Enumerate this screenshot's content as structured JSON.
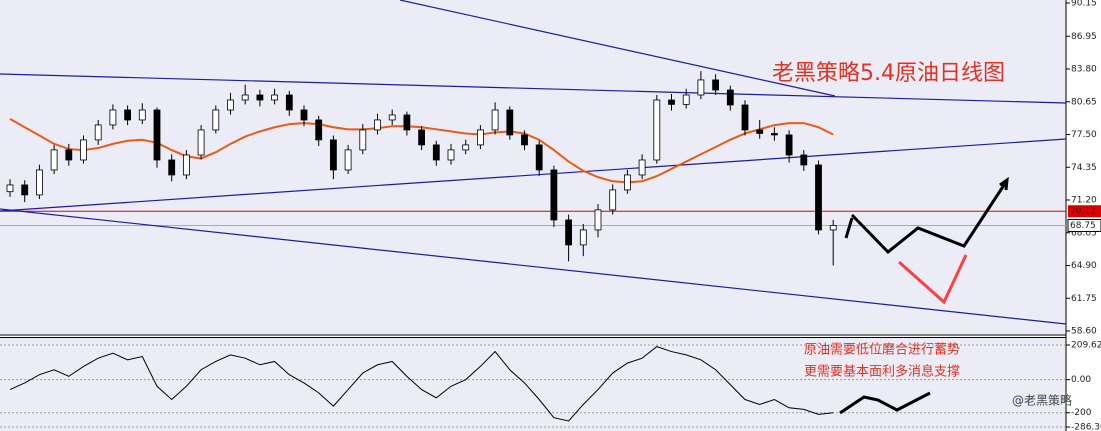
{
  "chart_data": {
    "type": "candlestick",
    "title": "老黑策略5.4原油日线图",
    "annotation": [
      "原油需要低位磨合进行蓄势",
      "更需要基本面利多消息支撑"
    ],
    "watermark": "@老黑策略",
    "up_color": "#ffffff",
    "down_color": "#000000",
    "open": [
      72.0,
      72.65,
      71.69,
      74.09,
      76.02,
      75.05,
      76.98,
      78.42,
      79.86,
      78.9,
      79.86,
      75.05,
      73.61,
      75.53,
      77.94,
      79.86,
      80.82,
      81.3,
      80.82,
      81.3,
      79.86,
      78.9,
      76.98,
      74.09,
      76.02,
      77.94,
      78.9,
      79.38,
      77.94,
      76.5,
      75.05,
      76.02,
      76.5,
      77.94,
      79.86,
      77.46,
      76.5,
      74.09,
      69.28,
      66.88,
      68.32,
      70.25,
      72.17,
      73.61,
      75.05,
      80.82,
      80.4,
      81.3,
      82.75,
      81.78,
      80.34,
      77.94,
      77.6,
      77.46,
      75.53,
      74.57,
      68.32
    ],
    "high": [
      73.2,
      73.1,
      74.6,
      76.5,
      76.6,
      77.4,
      78.9,
      80.4,
      80.3,
      80.5,
      80.1,
      75.6,
      76.0,
      78.4,
      80.3,
      81.5,
      82.3,
      81.8,
      81.9,
      81.7,
      80.3,
      79.3,
      77.4,
      76.5,
      78.5,
      79.5,
      79.9,
      79.7,
      78.3,
      76.9,
      76.6,
      77.0,
      78.4,
      80.6,
      80.2,
      77.9,
      76.9,
      74.5,
      69.8,
      68.9,
      70.8,
      72.7,
      74.1,
      75.6,
      81.3,
      81.4,
      81.9,
      83.6,
      83.3,
      82.2,
      80.8,
      78.9,
      78.2,
      77.9,
      76.0,
      75.0,
      69.3
    ],
    "low": [
      71.5,
      71.0,
      71.3,
      73.7,
      74.5,
      74.7,
      76.5,
      78.0,
      78.4,
      78.5,
      74.3,
      73.0,
      73.2,
      75.1,
      77.6,
      79.4,
      80.4,
      80.2,
      80.4,
      79.3,
      78.3,
      76.4,
      73.2,
      73.7,
      75.6,
      77.5,
      78.4,
      77.4,
      76.0,
      74.5,
      74.6,
      75.6,
      76.1,
      77.5,
      77.0,
      76.0,
      73.5,
      68.6,
      65.3,
      65.8,
      67.6,
      69.8,
      71.8,
      73.2,
      74.7,
      79.8,
      80.0,
      80.9,
      81.3,
      79.8,
      77.4,
      77.1,
      76.9,
      74.8,
      74.0,
      67.9,
      64.9
    ],
    "close": [
      72.65,
      71.69,
      74.09,
      76.02,
      75.05,
      76.98,
      78.42,
      79.86,
      78.9,
      79.86,
      75.05,
      73.61,
      75.53,
      77.94,
      79.86,
      80.82,
      81.3,
      80.82,
      81.3,
      79.86,
      78.9,
      76.98,
      74.09,
      76.02,
      77.94,
      78.9,
      79.38,
      77.94,
      76.5,
      75.05,
      76.02,
      76.5,
      77.94,
      79.86,
      77.46,
      76.5,
      74.09,
      69.28,
      66.88,
      68.32,
      70.25,
      72.17,
      73.61,
      75.05,
      80.82,
      80.4,
      81.3,
      82.75,
      81.78,
      80.34,
      77.94,
      77.6,
      77.46,
      75.53,
      74.57,
      68.32,
      68.75
    ],
    "ma": {
      "color": "#ee5a14",
      "values": [
        79.0,
        78.2,
        77.4,
        76.6,
        76.1,
        76.0,
        76.2,
        76.6,
        76.9,
        77.0,
        76.7,
        76.0,
        75.4,
        75.2,
        75.8,
        76.6,
        77.3,
        77.8,
        78.2,
        78.5,
        78.6,
        78.5,
        78.2,
        78.0,
        78.0,
        78.1,
        78.3,
        78.3,
        78.2,
        78.0,
        77.8,
        77.6,
        77.5,
        77.7,
        77.8,
        77.6,
        77.0,
        76.0,
        74.9,
        74.0,
        73.4,
        73.0,
        72.9,
        73.0,
        73.5,
        74.2,
        74.9,
        75.6,
        76.3,
        77.0,
        77.6,
        78.0,
        78.4,
        78.6,
        78.6,
        78.2,
        77.5
      ]
    },
    "ylim": [
      58.6,
      90.15
    ],
    "yticks": [
      90.15,
      86.95,
      {
        "value": 83.8,
        "label": "83.80"
      },
      80.65,
      {
        "value": 77.5,
        "label": "77.50"
      },
      74.35,
      {
        "value": 71.2,
        "label": "71.20"
      },
      68.05,
      {
        "value": 64.9,
        "label": "64.90"
      },
      61.75,
      {
        "value": 58.6,
        "label": "58.60"
      }
    ],
    "alert_line": {
      "value": 70.12,
      "color": "#e00000"
    },
    "last_price": 68.75,
    "oscillator": {
      "color": "#000000",
      "values": [
        -60,
        -20,
        30,
        60,
        20,
        80,
        130,
        160,
        120,
        140,
        -40,
        -120,
        -40,
        60,
        110,
        150,
        130,
        90,
        110,
        30,
        -20,
        -80,
        -160,
        -60,
        40,
        90,
        110,
        20,
        -60,
        -110,
        -40,
        0,
        80,
        170,
        60,
        -20,
        -120,
        -230,
        -250,
        -150,
        -60,
        40,
        100,
        130,
        200,
        170,
        150,
        120,
        60,
        -30,
        -120,
        -150,
        -120,
        -170,
        -180,
        -210,
        -200
      ],
      "ylim": [
        -286.3,
        209.621
      ],
      "yticks": [
        209.621,
        {
          "value": 0,
          "label": "0.00"
        },
        -200,
        {
          "value": -286.3,
          "label": "-286.30"
        }
      ]
    }
  }
}
